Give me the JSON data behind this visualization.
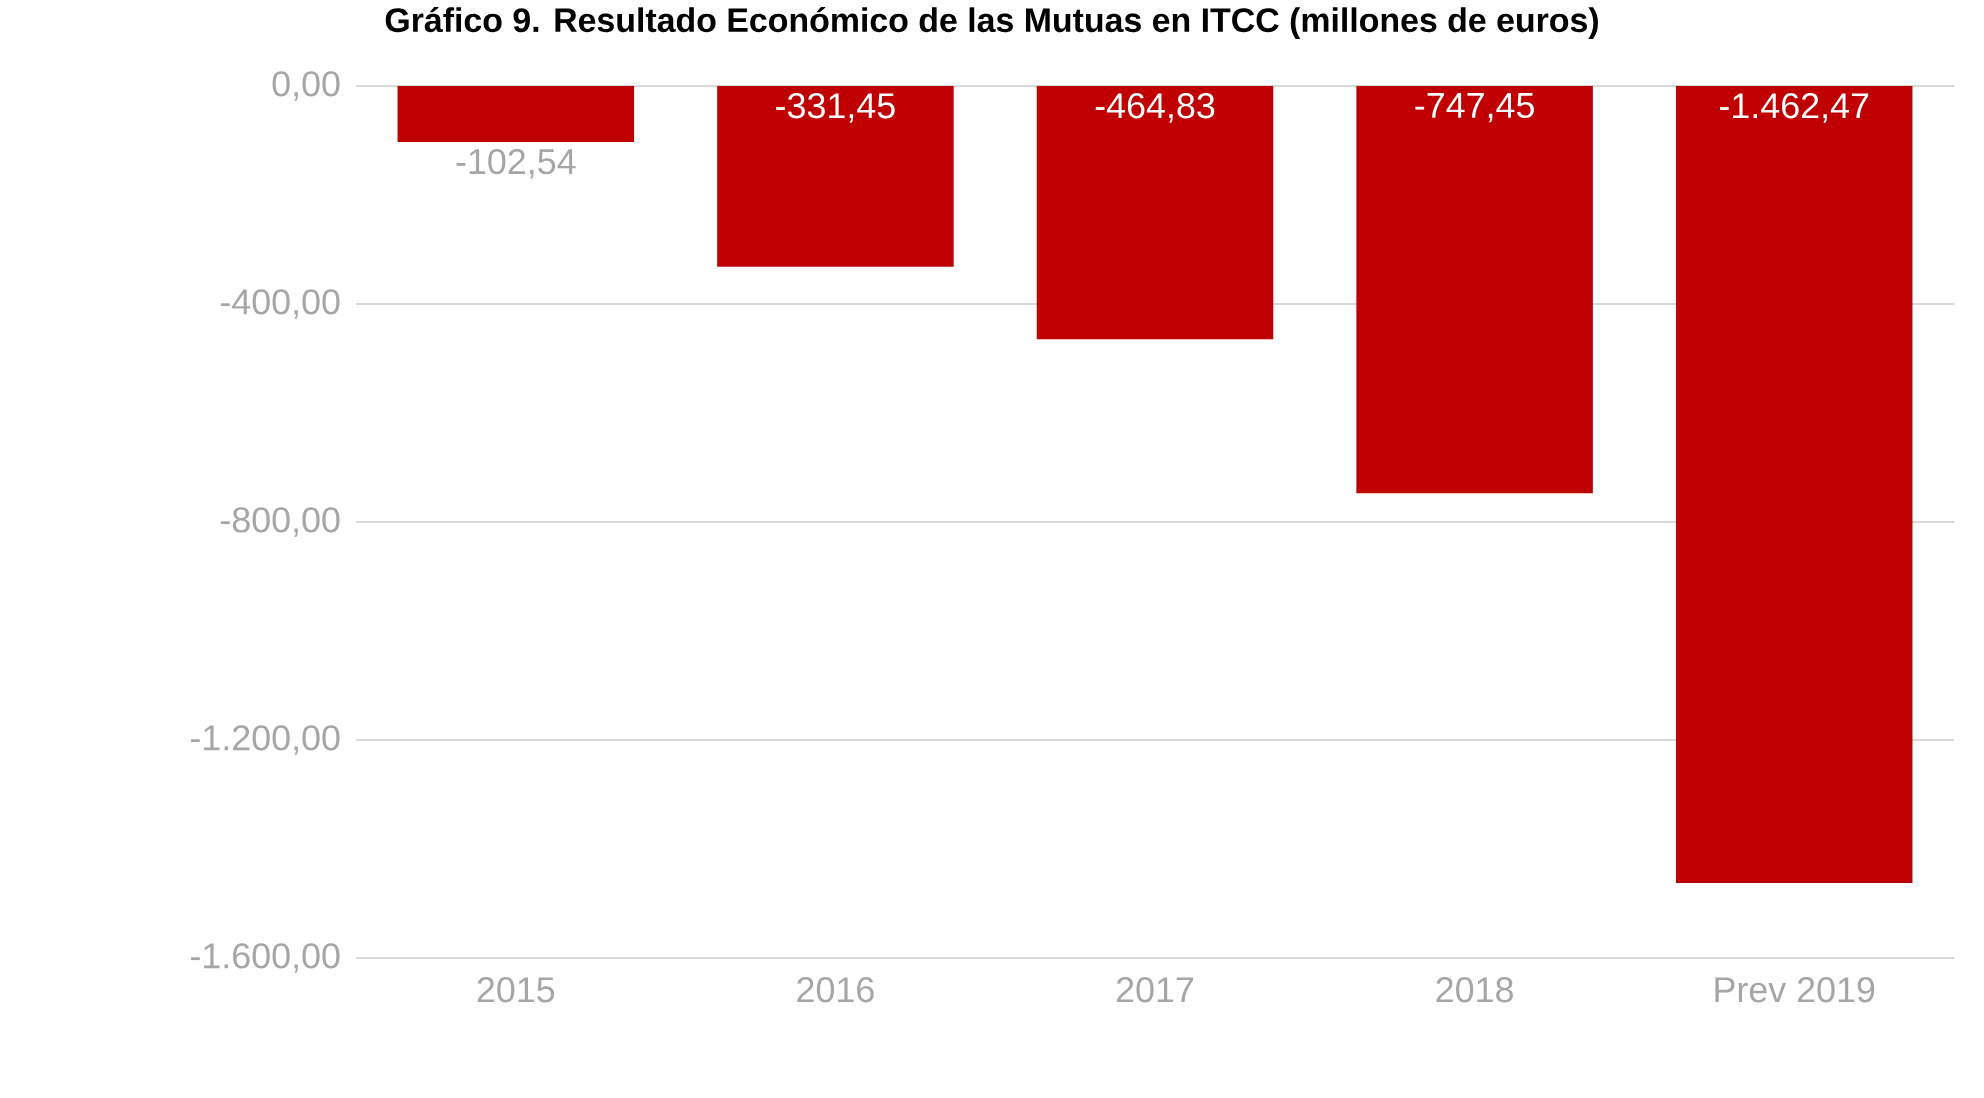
{
  "chart_data": {
    "type": "bar",
    "title": "Gráfico 9. Resultado Económico de las Mutuas en ITCC (millones de euros)",
    "categories": [
      "2015",
      "2016",
      "2017",
      "2018",
      "Prev 2019"
    ],
    "values": [
      -102.54,
      -331.45,
      -464.83,
      -747.45,
      -1462.47
    ],
    "value_labels": [
      "-102,54",
      "-331,45",
      "-464,83",
      "-747,45",
      "-1.462,47"
    ],
    "color": "#c00000",
    "ylim": [
      -1600,
      0
    ],
    "yticks": [
      {
        "value": 0,
        "label": "0,00"
      },
      {
        "value": -400,
        "label": "-400,00"
      },
      {
        "value": -800,
        "label": "-800,00"
      },
      {
        "value": -1200,
        "label": "-1.200,00"
      },
      {
        "value": -1600,
        "label": "-1.600,00"
      }
    ],
    "grid": "y"
  }
}
